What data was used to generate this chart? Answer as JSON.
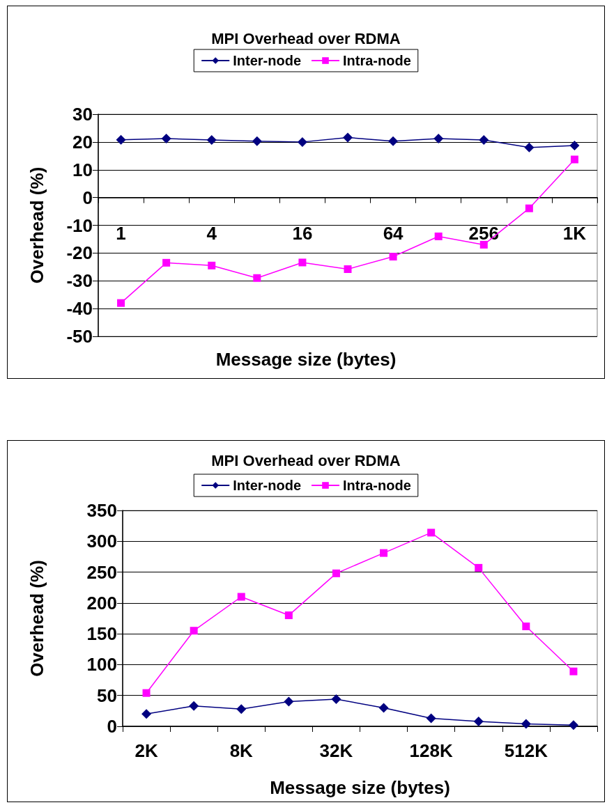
{
  "chart_data": [
    {
      "type": "line",
      "title": "MPI Overhead over RDMA",
      "xlabel": "Message size (bytes)",
      "ylabel": "Overhead (%)",
      "categories": [
        "1",
        null,
        "4",
        null,
        "16",
        null,
        "64",
        null,
        "256",
        null,
        "1K"
      ],
      "series": [
        {
          "name": "Inter-node",
          "color": "#000080",
          "marker": "diamond",
          "values": [
            20.8,
            21.2,
            20.7,
            20.3,
            20,
            21.6,
            20.3,
            21.2,
            20.7,
            18,
            18.7
          ]
        },
        {
          "name": "Intra-node",
          "color": "#ff00ff",
          "marker": "square",
          "values": [
            -38,
            -23.5,
            -24.5,
            -29,
            -23.4,
            -25.8,
            -21.3,
            -14,
            -17,
            -3.9,
            13.7
          ]
        }
      ],
      "ylim": [
        -50,
        30
      ],
      "yticks": [
        -50,
        -40,
        -30,
        -20,
        -10,
        0,
        10,
        20,
        30
      ],
      "grid": "y",
      "legend": "top"
    },
    {
      "type": "line",
      "title": "MPI Overhead over RDMA",
      "xlabel": "Message size (bytes)",
      "ylabel": "Overhead (%)",
      "categories": [
        "2K",
        null,
        "8K",
        null,
        "32K",
        null,
        "128K",
        null,
        "512K",
        null
      ],
      "series": [
        {
          "name": "Inter-node",
          "color": "#000080",
          "marker": "diamond",
          "values": [
            20,
            33,
            28,
            40,
            44,
            30,
            13,
            8,
            4,
            2
          ]
        },
        {
          "name": "Intra-node",
          "color": "#ff00ff",
          "marker": "square",
          "values": [
            54,
            155,
            210,
            180,
            248,
            281,
            314,
            257,
            162,
            89
          ]
        }
      ],
      "ylim": [
        0,
        350
      ],
      "yticks": [
        0,
        50,
        100,
        150,
        200,
        250,
        300,
        350
      ],
      "grid": "y",
      "legend": "top"
    }
  ]
}
